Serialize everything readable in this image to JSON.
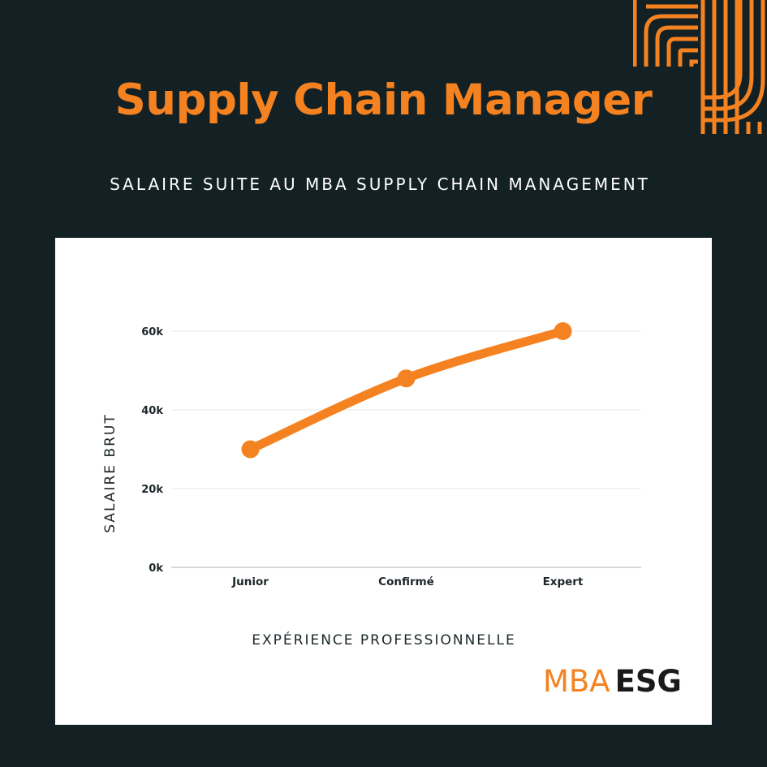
{
  "header": {
    "title": "Supply Chain Manager",
    "subtitle": "SALAIRE SUITE AU MBA SUPPLY CHAIN MANAGEMENT"
  },
  "logo": {
    "part1": "MBA",
    "part2": "ESG"
  },
  "colors": {
    "background": "#132024",
    "accent": "#f58220",
    "card": "#ffffff",
    "text_dark": "#1c2629"
  },
  "chart_data": {
    "type": "line",
    "categories": [
      "Junior",
      "Confirmé",
      "Expert"
    ],
    "series": [
      {
        "values": [
          30000,
          48000,
          60000
        ]
      }
    ],
    "yticks": [
      {
        "value": 0,
        "label": "0k"
      },
      {
        "value": 20000,
        "label": "20k"
      },
      {
        "value": 40000,
        "label": "40k"
      },
      {
        "value": 60000,
        "label": "60k"
      }
    ],
    "ylim": [
      0,
      60000
    ],
    "xlabel": "EXPÉRIENCE PROFESSIONNELLE",
    "ylabel": "SALAIRE BRUT",
    "grid": true,
    "legend": "none"
  }
}
